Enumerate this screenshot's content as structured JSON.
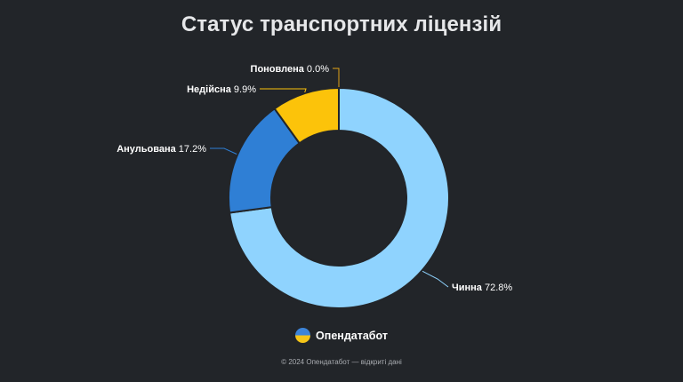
{
  "chart_data": {
    "type": "pie",
    "variant": "donut",
    "title": "Статус транспортних ліцензій",
    "categories": [
      "Чинна",
      "Анульована",
      "Недійсна",
      "Поновлена"
    ],
    "values": [
      72.8,
      17.2,
      9.9,
      0.0
    ],
    "value_labels": [
      "72.8%",
      "17.2%",
      "9.9%",
      "0.0%"
    ],
    "colors": [
      "#8fd3fe",
      "#2f7fd5",
      "#fcc30a",
      "#e3a318"
    ],
    "legend": "none"
  },
  "brand": {
    "name": "Опендатабот",
    "logo_icon": "ukraine-flag-circle-icon",
    "logo_colors": [
      "#3d84d8",
      "#f5c518"
    ]
  },
  "footer": {
    "copyright": "© 2024 Опендатабот — відкриті дані"
  }
}
